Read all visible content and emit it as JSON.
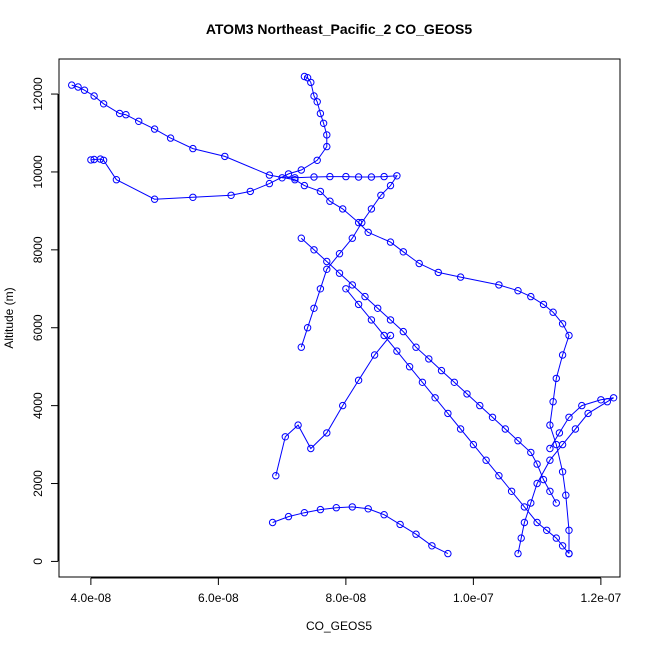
{
  "chart_data": {
    "type": "scatter",
    "title": "ATOM3 Northeast_Pacific_2 CO_GEOS5",
    "xlabel": "CO_GEOS5",
    "ylabel": "Altitude (m)",
    "xlim": [
      3.5e-08,
      1.23e-07
    ],
    "ylim": [
      -400,
      12900
    ],
    "x_ticks": [
      {
        "value": 4e-08,
        "label": "4.0e-08"
      },
      {
        "value": 6e-08,
        "label": "6.0e-08"
      },
      {
        "value": 8e-08,
        "label": "8.0e-08"
      },
      {
        "value": 1e-07,
        "label": "1.0e-07"
      },
      {
        "value": 1.2e-07,
        "label": "1.2e-07"
      }
    ],
    "y_ticks": [
      {
        "value": 0,
        "label": "0"
      },
      {
        "value": 2000,
        "label": "2000"
      },
      {
        "value": 4000,
        "label": "4000"
      },
      {
        "value": 6000,
        "label": "6000"
      },
      {
        "value": 8000,
        "label": "8000"
      },
      {
        "value": 10000,
        "label": "10000"
      },
      {
        "value": 12000,
        "label": "12000"
      }
    ],
    "color": "#0000ff",
    "marker": "open-circle",
    "connected": true,
    "grid": false,
    "series": [
      {
        "x": [
          3.7e-08,
          3.8e-08,
          3.9e-08,
          4.05e-08,
          4.2e-08,
          4.45e-08,
          4.55e-08,
          4.75e-08,
          5e-08,
          5.25e-08,
          5.6e-08,
          6.1e-08,
          6.8e-08,
          7.2e-08,
          7.35e-08,
          7.6e-08,
          7.75e-08,
          7.95e-08,
          8.2e-08,
          8.35e-08,
          8.7e-08,
          8.9e-08,
          9.15e-08,
          9.45e-08,
          9.8e-08,
          1.04e-07,
          1.07e-07,
          1.09e-07,
          1.11e-07,
          1.125e-07,
          1.14e-07,
          1.15e-07,
          1.14e-07,
          1.13e-07,
          1.125e-07,
          1.12e-07,
          1.13e-07,
          1.14e-07,
          1.145e-07,
          1.15e-07,
          1.15e-07
        ],
        "y": [
          12230,
          12180,
          12100,
          11950,
          11750,
          11500,
          11470,
          11300,
          11100,
          10870,
          10600,
          10400,
          9920,
          9800,
          9650,
          9500,
          9250,
          9050,
          8700,
          8450,
          8200,
          7950,
          7650,
          7420,
          7300,
          7100,
          6950,
          6800,
          6600,
          6400,
          6100,
          5800,
          5300,
          4700,
          4100,
          3500,
          3000,
          2300,
          1700,
          800,
          200
        ]
      },
      {
        "x": [
          7.35e-08,
          7.4e-08,
          7.45e-08,
          7.5e-08,
          7.55e-08,
          7.6e-08,
          7.65e-08,
          7.7e-08,
          7.7e-08,
          7.55e-08,
          7.3e-08,
          7.1e-08,
          6.8e-08,
          6.5e-08,
          6.2e-08,
          5.6e-08,
          5e-08,
          4.4e-08,
          4.2e-08,
          4.15e-08,
          4.05e-08,
          4e-08
        ],
        "y": [
          12450,
          12420,
          12300,
          11950,
          11800,
          11500,
          11250,
          10950,
          10650,
          10300,
          10050,
          9950,
          9700,
          9500,
          9400,
          9350,
          9300,
          9800,
          10300,
          10330,
          10320,
          10310
        ]
      },
      {
        "x": [
          7e-08,
          7.2e-08,
          7.5e-08,
          7.75e-08,
          8e-08,
          8.2e-08,
          8.4e-08,
          8.6e-08,
          8.8e-08,
          8.7e-08,
          8.55e-08,
          8.4e-08,
          8.25e-08,
          8.1e-08,
          7.9e-08,
          7.7e-08,
          7.6e-08,
          7.5e-08,
          7.4e-08,
          7.3e-08
        ],
        "y": [
          9850,
          9850,
          9870,
          9880,
          9880,
          9870,
          9870,
          9880,
          9900,
          9650,
          9400,
          9050,
          8700,
          8300,
          7900,
          7500,
          7000,
          6500,
          6000,
          5500
        ]
      },
      {
        "x": [
          7.3e-08,
          7.5e-08,
          7.7e-08,
          7.9e-08,
          8.1e-08,
          8.3e-08,
          8.5e-08,
          8.7e-08,
          8.9e-08,
          9.1e-08,
          9.3e-08,
          9.5e-08,
          9.7e-08,
          9.9e-08,
          1.01e-07,
          1.03e-07,
          1.05e-07,
          1.07e-07,
          1.09e-07,
          1.1e-07,
          1.11e-07,
          1.12e-07,
          1.13e-07
        ],
        "y": [
          8300,
          8000,
          7700,
          7400,
          7100,
          6800,
          6500,
          6200,
          5900,
          5500,
          5200,
          4900,
          4600,
          4300,
          4000,
          3700,
          3400,
          3100,
          2800,
          2500,
          2100,
          1800,
          1500
        ]
      },
      {
        "x": [
          8e-08,
          8.2e-08,
          8.4e-08,
          8.6e-08,
          8.8e-08,
          9e-08,
          9.2e-08,
          9.4e-08,
          9.6e-08,
          9.8e-08,
          1e-07,
          1.02e-07,
          1.04e-07,
          1.06e-07,
          1.08e-07,
          1.1e-07,
          1.115e-07,
          1.13e-07,
          1.14e-07,
          1.15e-07
        ],
        "y": [
          7000,
          6600,
          6200,
          5800,
          5400,
          5000,
          4600,
          4200,
          3800,
          3400,
          3000,
          2600,
          2200,
          1800,
          1400,
          1000,
          800,
          600,
          400,
          200
        ]
      },
      {
        "x": [
          6.85e-08,
          7.1e-08,
          7.35e-08,
          7.6e-08,
          7.85e-08,
          8.1e-08,
          8.35e-08,
          8.6e-08,
          8.85e-08,
          9.1e-08,
          9.35e-08,
          9.6e-08
        ],
        "y": [
          1000,
          1150,
          1250,
          1330,
          1380,
          1400,
          1350,
          1200,
          950,
          700,
          400,
          200
        ]
      },
      {
        "x": [
          6.9e-08,
          7.05e-08,
          7.25e-08,
          7.45e-08,
          7.7e-08,
          7.95e-08,
          8.2e-08,
          8.45e-08,
          8.7e-08
        ],
        "y": [
          2200,
          3200,
          3500,
          2900,
          3300,
          4000,
          4650,
          5300,
          5800
        ]
      },
      {
        "x": [
          1.07e-07,
          1.075e-07,
          1.08e-07,
          1.09e-07,
          1.1e-07,
          1.12e-07,
          1.14e-07,
          1.16e-07,
          1.18e-07,
          1.21e-07,
          1.22e-07,
          1.2e-07,
          1.17e-07,
          1.15e-07,
          1.135e-07,
          1.12e-07
        ],
        "y": [
          200,
          600,
          1000,
          1500,
          2000,
          2600,
          3000,
          3400,
          3800,
          4100,
          4200,
          4150,
          4000,
          3700,
          3300,
          2900
        ]
      }
    ]
  }
}
